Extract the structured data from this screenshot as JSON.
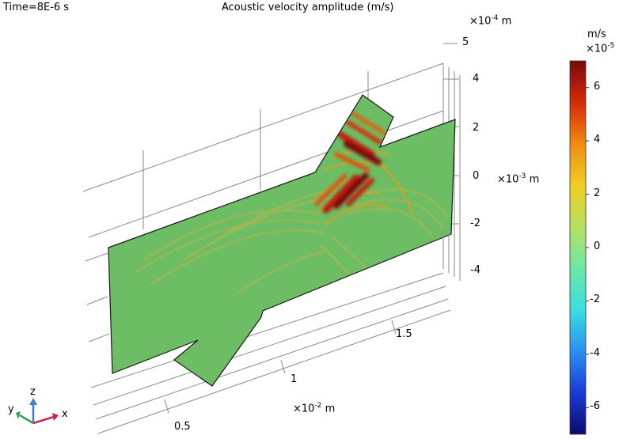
{
  "header": {
    "time_label": "Time=8E-6 s",
    "title": "Acoustic velocity amplitude (m/s)"
  },
  "axes": {
    "z_scale_prefix": "×10",
    "z_scale_exp": "-4",
    "z_scale_unit": "m",
    "y_scale_prefix": "×10",
    "y_scale_exp": "-3",
    "y_scale_unit": "m",
    "x_scale_prefix": "×10",
    "x_scale_exp": "-2",
    "x_scale_unit": "m"
  },
  "triad": {
    "x": "x",
    "y": "y",
    "z": "z"
  },
  "colorbar": {
    "unit": "m/s",
    "scale_prefix": "×10",
    "scale_exp": "-5",
    "colors": [
      "#0b0b6e",
      "#1a3bd6",
      "#2a8ff0",
      "#38e0e0",
      "#6ce6a8",
      "#b8e060",
      "#f0d020",
      "#f08a10",
      "#d42a08",
      "#7a0a0a"
    ]
  },
  "chart_data": {
    "type": "heatmap",
    "title": "Acoustic velocity amplitude (m/s)",
    "subtitle": "Time=8E-6 s",
    "x_ticks": [
      "0.5",
      "1",
      "1.5"
    ],
    "y_ticks": [
      "-4",
      "-2",
      "0",
      "2",
      "4"
    ],
    "z_ticks": [
      "5"
    ],
    "colorbar_ticks": [
      "6",
      "4",
      "2",
      "0",
      "-2",
      "-4",
      "-6"
    ],
    "colorbar_range": [
      -7,
      7
    ],
    "colors": {
      "background_field": "#6cbd64",
      "hotspot_max": "#8a0a0a",
      "ripple": "#d8b030"
    }
  }
}
